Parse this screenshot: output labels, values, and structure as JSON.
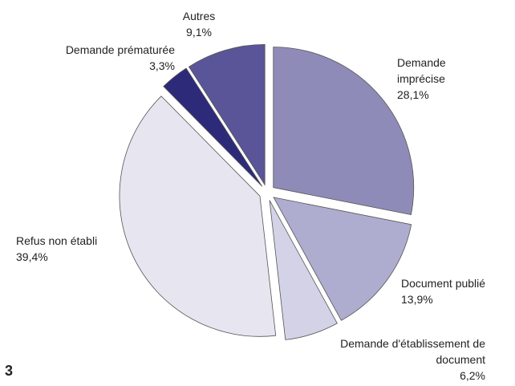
{
  "chart_data": {
    "type": "pie",
    "categories": [
      "Demande imprécise",
      "Document publié",
      "Demande d'établissement de document",
      "Refus non établi",
      "Demande prématurée",
      "Autres"
    ],
    "values": [
      28.1,
      13.9,
      6.2,
      39.4,
      3.3,
      9.1
    ],
    "value_labels": [
      "28,1%",
      "13,9%",
      "6,2%",
      "39,4%",
      "3,3%",
      "9,1%"
    ],
    "colors": [
      "#8f8bb8",
      "#aeaccf",
      "#d3d2e6",
      "#e6e5f0",
      "#2e2a7a",
      "#5a5598"
    ],
    "exploded": true
  },
  "footnote": "3"
}
